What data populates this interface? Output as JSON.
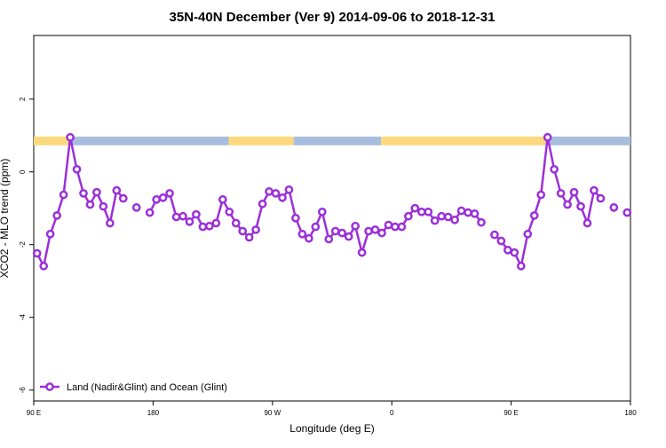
{
  "chart_data": {
    "type": "line",
    "title": "35N-40N December (Ver 9)   2014-09-06 to 2018-12-31",
    "x_label": "Longitude (deg E)",
    "y_label": "XCO2 - MLO trend (ppm)",
    "x": [
      92.5,
      97.5,
      102.5,
      107.5,
      112.5,
      117.5,
      122.5,
      127.5,
      132.5,
      137.5,
      142.5,
      147.5,
      152.5,
      157.5,
      162.5,
      167.5,
      172.5,
      177.5,
      182.5,
      187.5,
      192.5,
      197.5,
      202.5,
      207.5,
      212.5,
      217.5,
      222.5,
      227.5,
      232.5,
      237.5,
      242.5,
      247.5,
      252.5,
      257.5,
      262.5,
      267.5,
      272.5,
      277.5,
      282.5,
      287.5,
      292.5,
      297.5,
      302.5,
      307.5,
      312.5,
      317.5,
      322.5,
      327.5,
      332.5,
      337.5,
      342.5,
      347.5,
      352.5,
      357.5,
      362.5,
      367.5,
      372.5,
      377.5,
      382.5,
      387.5,
      392.5,
      397.5,
      402.5,
      407.5,
      412.5,
      417.5,
      422.5,
      427.5,
      432.5,
      437.5,
      442.5,
      447.5,
      452.5,
      457.5,
      462.5,
      467.5,
      472.5,
      477.5,
      482.5,
      487.5,
      492.5,
      497.5,
      502.5,
      507.5,
      512.5,
      517.5,
      522.5,
      527.5,
      532.5,
      537.5
    ],
    "series": [
      {
        "name": "Land (Nadir&Glint) and Ocean (Glint)",
        "color": "#9b30d9",
        "values": [
          -2.24,
          -2.59,
          -1.71,
          -1.2,
          -0.63,
          0.95,
          0.07,
          -0.59,
          -0.9,
          -0.56,
          -0.95,
          -1.41,
          -0.51,
          -0.73,
          null,
          -0.98,
          null,
          -1.12,
          -0.76,
          -0.71,
          -0.59,
          -1.24,
          -1.22,
          -1.37,
          -1.17,
          -1.51,
          -1.49,
          -1.41,
          -0.76,
          -1.1,
          -1.41,
          -1.63,
          -1.8,
          -1.59,
          -0.88,
          -0.54,
          -0.59,
          -0.71,
          -0.49,
          -1.27,
          -1.71,
          -1.83,
          -1.51,
          -1.1,
          -1.85,
          -1.63,
          -1.68,
          -1.78,
          -1.49,
          -2.22,
          -1.63,
          -1.59,
          -1.68,
          -1.46,
          -1.51,
          -1.51,
          -1.22,
          -1.0,
          -1.1,
          -1.1,
          -1.34,
          -1.22,
          -1.24,
          -1.32,
          -1.07,
          -1.12,
          -1.15,
          -1.39,
          null,
          -1.73,
          -1.9,
          -2.15,
          -2.22,
          -2.59,
          -1.71,
          -1.2,
          -0.63,
          0.95,
          0.07,
          -0.59,
          -0.9,
          -0.56,
          -0.95,
          -1.41,
          -0.51,
          -0.73,
          null,
          -0.98,
          null,
          -1.12
        ]
      }
    ],
    "xlim": [
      90,
      540
    ],
    "xticks": [
      {
        "value": 90,
        "label": "90 E"
      },
      180,
      {
        "value": 270,
        "label": "90 W"
      },
      {
        "value": 360,
        "label": "0"
      },
      {
        "value": 450,
        "label": "90 E"
      },
      {
        "value": 540,
        "label": "180"
      }
    ],
    "ylim": [
      -6.3,
      3.75
    ],
    "yticks": [
      -6,
      -4,
      -2,
      0,
      2
    ],
    "legend": "bottomleft",
    "land_ocean_band": {
      "ylim": [
        0.73,
        0.97
      ],
      "segments": [
        {
          "x": [
            90,
            118
          ],
          "color": "#fcd97c"
        },
        {
          "x": [
            118,
            237
          ],
          "color": "#a7bedf"
        },
        {
          "x": [
            237,
            286
          ],
          "color": "#fcd97c"
        },
        {
          "x": [
            286,
            352
          ],
          "color": "#a7bedf"
        },
        {
          "x": [
            352,
            476
          ],
          "color": "#fcd97c"
        },
        {
          "x": [
            476,
            540
          ],
          "color": "#a7bedf"
        }
      ]
    }
  }
}
